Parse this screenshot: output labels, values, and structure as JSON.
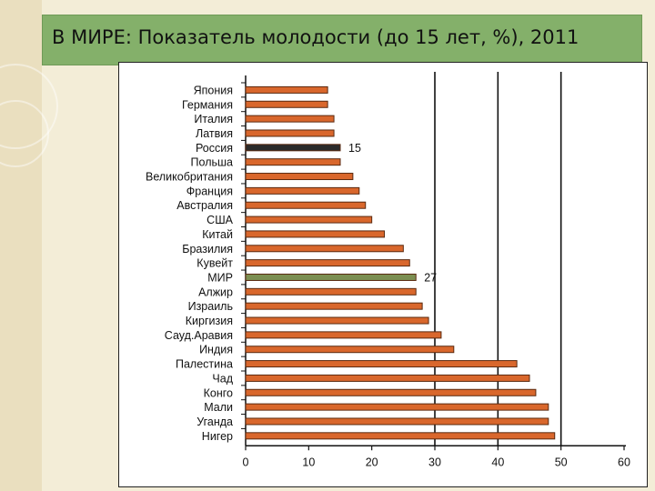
{
  "slide": {
    "title": "В МИРЕ: Показатель молодости (до 15 лет, %), 2011"
  },
  "colors": {
    "bar": "#d9672c",
    "bar_outline": "#5a2a10",
    "highlight_russia": "#2b2b2b",
    "highlight_world": "#7c8f52",
    "banner": "#84b06a",
    "background": "#f3edd7"
  },
  "chart_data": {
    "type": "bar",
    "orientation": "horizontal",
    "title": "",
    "xlabel": "",
    "ylabel": "",
    "xlim": [
      0,
      60
    ],
    "xticks": [
      0,
      10,
      20,
      30,
      40,
      50,
      60
    ],
    "grid": "vertical lines at 30, 40, 50",
    "categories": [
      "Япония",
      "Германия",
      "Италия",
      "Латвия",
      "Россия",
      "Польша",
      "Великобритания",
      "Франция",
      "Австралия",
      "США",
      "Китай",
      "Бразилия",
      "Кувейт",
      "МИР",
      "Алжир",
      "Израиль",
      "Киргизия",
      "Сауд.Аравия",
      "Индия",
      "Палестина",
      "Чад",
      "Конго",
      "Мали",
      "Уганда",
      "Нигер"
    ],
    "values": [
      13,
      13,
      14,
      14,
      15,
      15,
      17,
      18,
      19,
      20,
      22,
      25,
      26,
      27,
      27,
      28,
      29,
      31,
      33,
      43,
      45,
      46,
      48,
      48,
      49
    ],
    "highlighted": {
      "Россия": "highlight_russia",
      "МИР": "highlight_world"
    },
    "data_labels": [
      {
        "category": "Россия",
        "text": "15"
      },
      {
        "category": "МИР",
        "text": "27"
      }
    ]
  }
}
